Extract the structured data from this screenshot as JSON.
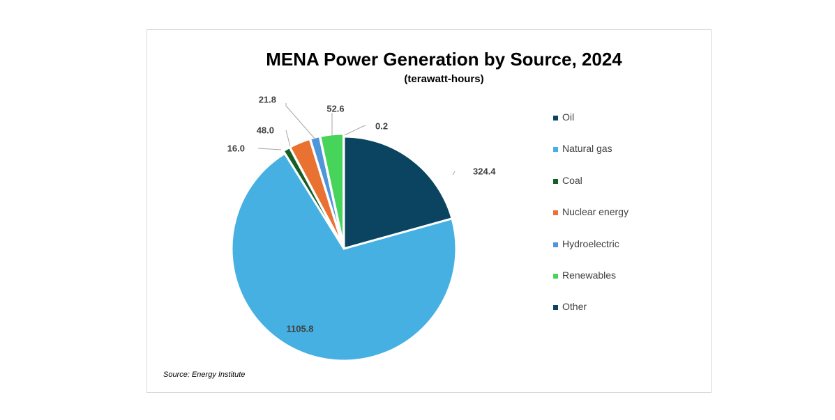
{
  "chart_data": {
    "type": "pie",
    "title": "MENA Power Generation by Source, 2024",
    "subtitle": "(terawatt-hours)",
    "source": "Source: Energy Institute",
    "legend_position": "right",
    "slices": [
      {
        "label": "Oil",
        "value": 324.4,
        "value_label": "324.4",
        "color": "#0a4461"
      },
      {
        "label": "Natural gas",
        "value": 1105.8,
        "value_label": "1105.8",
        "color": "#45b0e1"
      },
      {
        "label": "Coal",
        "value": 16.0,
        "value_label": "16.0",
        "color": "#155e25"
      },
      {
        "label": "Nuclear energy",
        "value": 48.0,
        "value_label": "48.0",
        "color": "#e97132"
      },
      {
        "label": "Hydroelectric",
        "value": 21.8,
        "value_label": "21.8",
        "color": "#4e95d9"
      },
      {
        "label": "Renewables",
        "value": 52.6,
        "value_label": "52.6",
        "color": "#47d45a"
      },
      {
        "label": "Other",
        "value": 0.2,
        "value_label": "0.2",
        "color": "#0a4461"
      }
    ]
  }
}
